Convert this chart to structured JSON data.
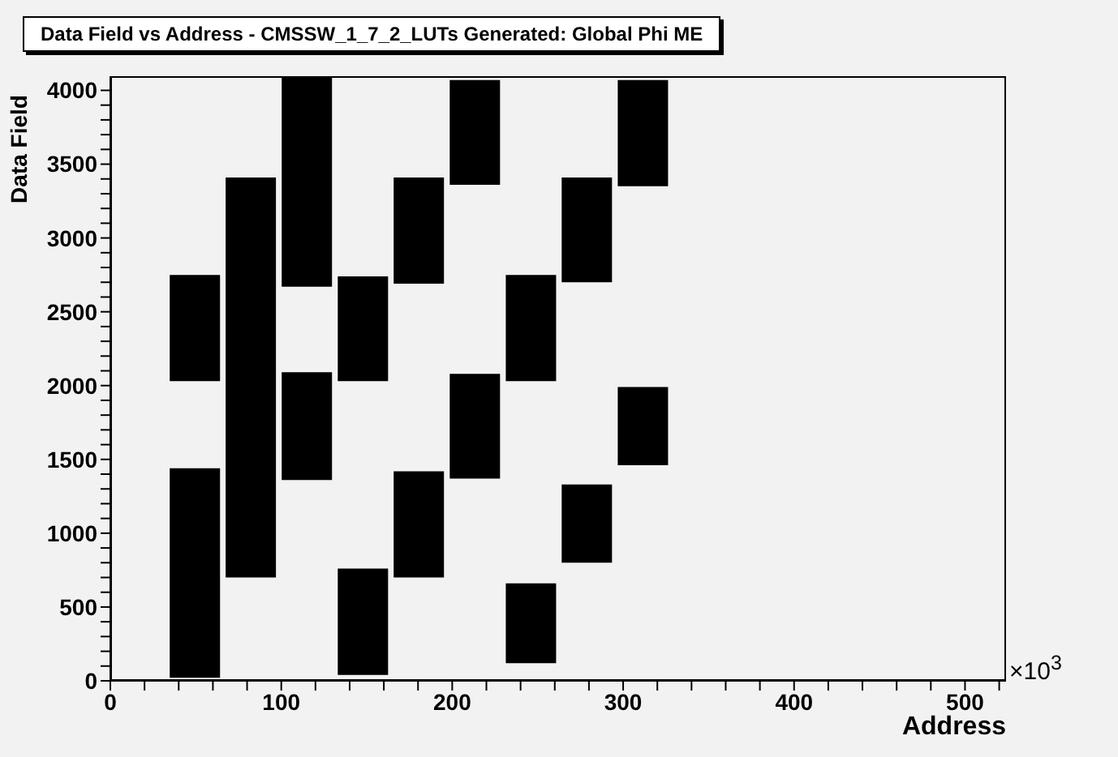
{
  "chart_data": {
    "type": "bar",
    "title": "Data Field vs Address - CMSSW_1_7_2_LUTs Generated: Global Phi ME",
    "xlabel": "Address",
    "ylabel": "Data Field",
    "annotations": [
      "×10$^{3}$"
    ],
    "x": [
      49.2,
      81.9,
      114.7,
      147.5,
      180.2,
      213.0,
      245.8,
      278.5,
      311.3
    ],
    "series": [
      {
        "color": "#000000",
        "base": [
          20,
          700,
          1360,
          40,
          700,
          1370,
          120,
          800,
          1460
        ],
        "values": [
          1420,
          2710,
          730,
          720,
          720,
          710,
          540,
          530,
          530
        ]
      },
      {
        "color": "#000000",
        "base": [
          2030,
          null,
          2670,
          2030,
          2690,
          3360,
          2030,
          2700,
          3350
        ],
        "values": [
          720,
          null,
          1420,
          710,
          720,
          710,
          720,
          710,
          720
        ]
      }
    ],
    "xlim": [
      0,
      524
    ],
    "ylim": [
      0,
      4096
    ],
    "xticks": [
      0,
      {
        "value": 20,
        "label": null
      },
      {
        "value": 40,
        "label": null
      },
      {
        "value": 60,
        "label": null
      },
      {
        "value": 80,
        "label": null
      },
      100,
      {
        "value": 120,
        "label": null
      },
      {
        "value": 140,
        "label": null
      },
      {
        "value": 160,
        "label": null
      },
      {
        "value": 180,
        "label": null
      },
      200,
      {
        "value": 220,
        "label": null
      },
      {
        "value": 240,
        "label": null
      },
      {
        "value": 260,
        "label": null
      },
      {
        "value": 280,
        "label": null
      },
      300,
      {
        "value": 320,
        "label": null
      },
      {
        "value": 340,
        "label": null
      },
      {
        "value": 360,
        "label": null
      },
      {
        "value": 380,
        "label": null
      },
      400,
      {
        "value": 420,
        "label": null
      },
      {
        "value": 440,
        "label": null
      },
      {
        "value": 460,
        "label": null
      },
      {
        "value": 480,
        "label": null
      },
      500,
      {
        "value": 520,
        "label": null
      }
    ],
    "yticks": [
      0,
      {
        "value": 100,
        "label": null
      },
      {
        "value": 200,
        "label": null
      },
      {
        "value": 300,
        "label": null
      },
      {
        "value": 400,
        "label": null
      },
      500,
      {
        "value": 600,
        "label": null
      },
      {
        "value": 700,
        "label": null
      },
      {
        "value": 800,
        "label": null
      },
      {
        "value": 900,
        "label": null
      },
      1000,
      {
        "value": 1100,
        "label": null
      },
      {
        "value": 1200,
        "label": null
      },
      {
        "value": 1300,
        "label": null
      },
      {
        "value": 1400,
        "label": null
      },
      1500,
      {
        "value": 1600,
        "label": null
      },
      {
        "value": 1700,
        "label": null
      },
      {
        "value": 1800,
        "label": null
      },
      {
        "value": 1900,
        "label": null
      },
      2000,
      {
        "value": 2100,
        "label": null
      },
      {
        "value": 2200,
        "label": null
      },
      {
        "value": 2300,
        "label": null
      },
      {
        "value": 2400,
        "label": null
      },
      2500,
      {
        "value": 2600,
        "label": null
      },
      {
        "value": 2700,
        "label": null
      },
      {
        "value": 2800,
        "label": null
      },
      {
        "value": 2900,
        "label": null
      },
      3000,
      {
        "value": 3100,
        "label": null
      },
      {
        "value": 3200,
        "label": null
      },
      {
        "value": 3300,
        "label": null
      },
      {
        "value": 3400,
        "label": null
      },
      3500,
      {
        "value": 3600,
        "label": null
      },
      {
        "value": 3700,
        "label": null
      },
      {
        "value": 3800,
        "label": null
      },
      {
        "value": 3900,
        "label": null
      },
      4000
    ],
    "grid": false,
    "legend": false
  }
}
